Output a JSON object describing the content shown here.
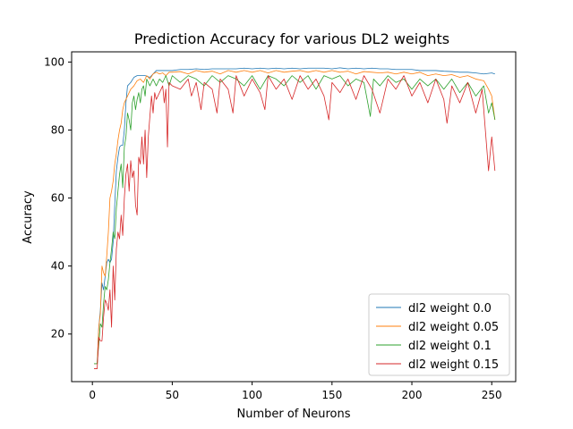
{
  "chart_data": {
    "type": "line",
    "title": "Prediction Accuracy for various DL2 weights",
    "xlabel": "Number of Neurons",
    "ylabel": "Accuracy",
    "xlim": [
      -13,
      265
    ],
    "ylim": [
      6,
      103
    ],
    "xticks": [
      0,
      50,
      100,
      150,
      200,
      250
    ],
    "yticks": [
      20,
      40,
      60,
      80,
      100
    ],
    "grid": false,
    "legend_position": "lower-right",
    "series": [
      {
        "name": "dl2 weight 0.0",
        "color": "#1f77b4",
        "points": [
          [
            1,
            11.3
          ],
          [
            2,
            11.3
          ],
          [
            3,
            11.3
          ],
          [
            4,
            22
          ],
          [
            5,
            27
          ],
          [
            6,
            35
          ],
          [
            7,
            33
          ],
          [
            8,
            37
          ],
          [
            9,
            41
          ],
          [
            10,
            42
          ],
          [
            11,
            41
          ],
          [
            12,
            42
          ],
          [
            13,
            47
          ],
          [
            14,
            58
          ],
          [
            15,
            68
          ],
          [
            16,
            72
          ],
          [
            17,
            75
          ],
          [
            18,
            75.5
          ],
          [
            19,
            75.5
          ],
          [
            20,
            80
          ],
          [
            21,
            88
          ],
          [
            22,
            93
          ],
          [
            24,
            94
          ],
          [
            26,
            95.5
          ],
          [
            28,
            96
          ],
          [
            30,
            96
          ],
          [
            33,
            96
          ],
          [
            36,
            95.5
          ],
          [
            38,
            96.5
          ],
          [
            40,
            97.5
          ],
          [
            45,
            97.5
          ],
          [
            50,
            97.5
          ],
          [
            55,
            97.8
          ],
          [
            60,
            97.8
          ],
          [
            65,
            98
          ],
          [
            70,
            97.8
          ],
          [
            75,
            98
          ],
          [
            80,
            98
          ],
          [
            85,
            98
          ],
          [
            90,
            98
          ],
          [
            95,
            98.2
          ],
          [
            100,
            98
          ],
          [
            105,
            98.2
          ],
          [
            110,
            98
          ],
          [
            115,
            98.2
          ],
          [
            120,
            98
          ],
          [
            125,
            98.2
          ],
          [
            130,
            98
          ],
          [
            135,
            98.2
          ],
          [
            140,
            98.2
          ],
          [
            145,
            98.2
          ],
          [
            150,
            98
          ],
          [
            155,
            98.3
          ],
          [
            160,
            98
          ],
          [
            165,
            98.2
          ],
          [
            170,
            98
          ],
          [
            175,
            98.2
          ],
          [
            180,
            98
          ],
          [
            185,
            98
          ],
          [
            190,
            97.8
          ],
          [
            195,
            97.8
          ],
          [
            200,
            97.8
          ],
          [
            205,
            97.5
          ],
          [
            210,
            97.5
          ],
          [
            215,
            97.5
          ],
          [
            220,
            97.3
          ],
          [
            225,
            97.2
          ],
          [
            230,
            97
          ],
          [
            235,
            97
          ],
          [
            240,
            96.8
          ],
          [
            245,
            96.5
          ],
          [
            250,
            96.8
          ],
          [
            252,
            96.5
          ]
        ]
      },
      {
        "name": "dl2 weight 0.05",
        "color": "#ff7f0e",
        "points": [
          [
            1,
            11.3
          ],
          [
            2,
            11.3
          ],
          [
            3,
            11.3
          ],
          [
            4,
            22
          ],
          [
            5,
            26
          ],
          [
            6,
            40
          ],
          [
            7,
            38
          ],
          [
            8,
            37
          ],
          [
            9,
            43
          ],
          [
            10,
            50
          ],
          [
            11,
            60
          ],
          [
            12,
            62
          ],
          [
            13,
            65
          ],
          [
            14,
            70
          ],
          [
            15,
            73
          ],
          [
            16,
            77
          ],
          [
            17,
            80
          ],
          [
            18,
            82
          ],
          [
            19,
            86
          ],
          [
            20,
            88
          ],
          [
            22,
            90
          ],
          [
            24,
            92
          ],
          [
            26,
            93
          ],
          [
            28,
            94.5
          ],
          [
            30,
            95
          ],
          [
            32,
            94
          ],
          [
            34,
            96
          ],
          [
            36,
            95
          ],
          [
            38,
            96.5
          ],
          [
            40,
            97
          ],
          [
            42,
            96.5
          ],
          [
            44,
            96.8
          ],
          [
            46,
            96
          ],
          [
            48,
            97
          ],
          [
            50,
            97
          ],
          [
            55,
            97.2
          ],
          [
            60,
            96.5
          ],
          [
            65,
            97.5
          ],
          [
            70,
            97
          ],
          [
            75,
            97.3
          ],
          [
            80,
            96.5
          ],
          [
            85,
            97.5
          ],
          [
            90,
            97
          ],
          [
            95,
            97.5
          ],
          [
            100,
            97
          ],
          [
            105,
            97.5
          ],
          [
            110,
            96.8
          ],
          [
            115,
            97.5
          ],
          [
            120,
            97
          ],
          [
            125,
            97.3
          ],
          [
            130,
            97.5
          ],
          [
            135,
            97
          ],
          [
            140,
            97.5
          ],
          [
            145,
            97
          ],
          [
            150,
            97.5
          ],
          [
            155,
            97
          ],
          [
            160,
            97.3
          ],
          [
            165,
            96.5
          ],
          [
            170,
            97.2
          ],
          [
            175,
            97
          ],
          [
            180,
            96.8
          ],
          [
            185,
            97
          ],
          [
            190,
            96.5
          ],
          [
            195,
            97
          ],
          [
            200,
            96.5
          ],
          [
            205,
            97
          ],
          [
            210,
            96
          ],
          [
            215,
            96.5
          ],
          [
            220,
            96
          ],
          [
            225,
            96.3
          ],
          [
            230,
            95.5
          ],
          [
            235,
            96
          ],
          [
            240,
            95
          ],
          [
            245,
            94.5
          ],
          [
            248,
            92
          ],
          [
            250,
            90
          ],
          [
            252,
            83
          ]
        ]
      },
      {
        "name": "dl2 weight 0.1",
        "color": "#2ca02c",
        "points": [
          [
            1,
            11.3
          ],
          [
            2,
            11.3
          ],
          [
            3,
            11.3
          ],
          [
            4,
            17
          ],
          [
            5,
            23
          ],
          [
            6,
            22
          ],
          [
            7,
            29
          ],
          [
            8,
            34
          ],
          [
            9,
            33
          ],
          [
            10,
            36
          ],
          [
            11,
            41
          ],
          [
            12,
            45
          ],
          [
            13,
            50
          ],
          [
            14,
            48
          ],
          [
            15,
            57
          ],
          [
            16,
            62
          ],
          [
            17,
            67
          ],
          [
            18,
            70
          ],
          [
            19,
            63
          ],
          [
            20,
            75
          ],
          [
            21,
            78
          ],
          [
            22,
            85
          ],
          [
            23,
            83
          ],
          [
            24,
            80
          ],
          [
            25,
            88
          ],
          [
            26,
            90
          ],
          [
            27,
            86
          ],
          [
            28,
            89
          ],
          [
            29,
            91
          ],
          [
            30,
            88
          ],
          [
            31,
            92
          ],
          [
            32,
            93
          ],
          [
            33,
            90
          ],
          [
            34,
            95
          ],
          [
            36,
            93
          ],
          [
            38,
            95
          ],
          [
            40,
            93
          ],
          [
            42,
            95
          ],
          [
            44,
            94
          ],
          [
            46,
            96
          ],
          [
            48,
            93
          ],
          [
            50,
            96
          ],
          [
            55,
            94
          ],
          [
            60,
            96
          ],
          [
            65,
            95
          ],
          [
            70,
            93
          ],
          [
            75,
            96
          ],
          [
            80,
            94
          ],
          [
            85,
            96
          ],
          [
            90,
            95
          ],
          [
            95,
            93
          ],
          [
            100,
            96
          ],
          [
            105,
            92
          ],
          [
            110,
            96
          ],
          [
            115,
            95
          ],
          [
            120,
            93
          ],
          [
            125,
            96
          ],
          [
            130,
            94
          ],
          [
            135,
            96
          ],
          [
            140,
            92
          ],
          [
            145,
            96
          ],
          [
            150,
            95
          ],
          [
            155,
            96
          ],
          [
            160,
            93
          ],
          [
            165,
            95
          ],
          [
            170,
            94
          ],
          [
            174,
            84
          ],
          [
            176,
            95
          ],
          [
            180,
            93
          ],
          [
            185,
            96
          ],
          [
            190,
            94
          ],
          [
            195,
            95
          ],
          [
            200,
            92
          ],
          [
            205,
            95
          ],
          [
            210,
            93
          ],
          [
            215,
            95
          ],
          [
            220,
            92
          ],
          [
            225,
            95
          ],
          [
            230,
            91
          ],
          [
            235,
            94
          ],
          [
            240,
            90
          ],
          [
            245,
            93
          ],
          [
            248,
            85
          ],
          [
            250,
            88
          ],
          [
            252,
            83
          ]
        ]
      },
      {
        "name": "dl2 weight 0.15",
        "color": "#d62728",
        "points": [
          [
            1,
            9.8
          ],
          [
            2,
            9.8
          ],
          [
            3,
            9.8
          ],
          [
            4,
            19
          ],
          [
            5,
            18
          ],
          [
            6,
            18
          ],
          [
            7,
            25
          ],
          [
            8,
            30
          ],
          [
            9,
            29
          ],
          [
            10,
            27
          ],
          [
            11,
            33
          ],
          [
            12,
            22
          ],
          [
            13,
            40
          ],
          [
            14,
            30
          ],
          [
            15,
            45
          ],
          [
            16,
            50
          ],
          [
            17,
            48
          ],
          [
            18,
            55
          ],
          [
            19,
            49
          ],
          [
            20,
            60
          ],
          [
            21,
            67
          ],
          [
            22,
            70
          ],
          [
            23,
            62
          ],
          [
            24,
            71
          ],
          [
            25,
            66
          ],
          [
            26,
            68
          ],
          [
            27,
            58
          ],
          [
            28,
            55
          ],
          [
            29,
            72
          ],
          [
            30,
            70
          ],
          [
            31,
            78
          ],
          [
            32,
            70
          ],
          [
            33,
            80
          ],
          [
            34,
            66
          ],
          [
            35,
            78
          ],
          [
            36,
            84
          ],
          [
            37,
            90
          ],
          [
            38,
            85
          ],
          [
            39,
            91
          ],
          [
            40,
            89
          ],
          [
            42,
            91
          ],
          [
            44,
            93
          ],
          [
            45,
            88
          ],
          [
            46,
            92
          ],
          [
            47,
            75
          ],
          [
            48,
            94
          ],
          [
            50,
            93
          ],
          [
            55,
            92
          ],
          [
            60,
            95
          ],
          [
            62,
            90
          ],
          [
            65,
            94
          ],
          [
            68,
            86
          ],
          [
            70,
            94
          ],
          [
            75,
            92
          ],
          [
            78,
            85
          ],
          [
            80,
            95
          ],
          [
            85,
            92
          ],
          [
            88,
            85
          ],
          [
            90,
            96
          ],
          [
            95,
            90
          ],
          [
            100,
            95
          ],
          [
            105,
            91
          ],
          [
            108,
            86
          ],
          [
            110,
            96
          ],
          [
            115,
            92
          ],
          [
            120,
            95
          ],
          [
            125,
            89
          ],
          [
            130,
            96
          ],
          [
            135,
            92
          ],
          [
            140,
            95
          ],
          [
            145,
            90
          ],
          [
            148,
            83
          ],
          [
            150,
            94
          ],
          [
            155,
            91
          ],
          [
            160,
            95
          ],
          [
            165,
            89
          ],
          [
            170,
            96
          ],
          [
            175,
            92
          ],
          [
            180,
            85
          ],
          [
            185,
            95
          ],
          [
            190,
            92
          ],
          [
            195,
            96
          ],
          [
            200,
            90
          ],
          [
            205,
            94
          ],
          [
            210,
            88
          ],
          [
            215,
            95
          ],
          [
            220,
            89
          ],
          [
            222,
            82
          ],
          [
            225,
            93
          ],
          [
            230,
            88
          ],
          [
            235,
            94
          ],
          [
            240,
            85
          ],
          [
            244,
            92
          ],
          [
            246,
            80
          ],
          [
            248,
            68
          ],
          [
            250,
            78
          ],
          [
            252,
            68
          ]
        ]
      }
    ]
  }
}
